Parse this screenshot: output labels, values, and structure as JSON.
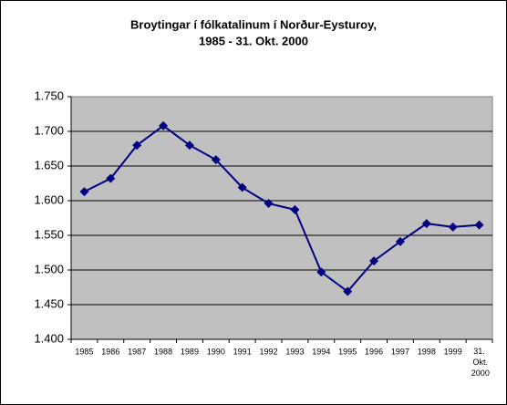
{
  "chart_data": {
    "type": "line",
    "title": [
      "Broytingar í fólkatalinum í Norður-Eysturoy,",
      "1985 - 31. Okt. 2000"
    ],
    "categories": [
      "1985",
      "1986",
      "1987",
      "1988",
      "1989",
      "1990",
      "1991",
      "1992",
      "1993",
      "1994",
      "1995",
      "1996",
      "1997",
      "1998",
      "1999",
      "31. Okt. 2000"
    ],
    "series": [
      {
        "color": "#000080",
        "values": [
          1613,
          1632,
          1680,
          1708,
          1680,
          1659,
          1619,
          1596,
          1587,
          1497,
          1469,
          1513,
          1541,
          1567,
          1562,
          1565
        ]
      }
    ],
    "ylim": [
      1400,
      1750
    ],
    "yticks": [
      {
        "value": 1400,
        "label": "1.400"
      },
      {
        "value": 1450,
        "label": "1.450"
      },
      {
        "value": 1500,
        "label": "1.500"
      },
      {
        "value": 1550,
        "label": "1.550"
      },
      {
        "value": 1600,
        "label": "1.600"
      },
      {
        "value": 1650,
        "label": "1.650"
      },
      {
        "value": 1700,
        "label": "1.700"
      },
      {
        "value": 1750,
        "label": "1.750"
      }
    ],
    "grid": true
  }
}
